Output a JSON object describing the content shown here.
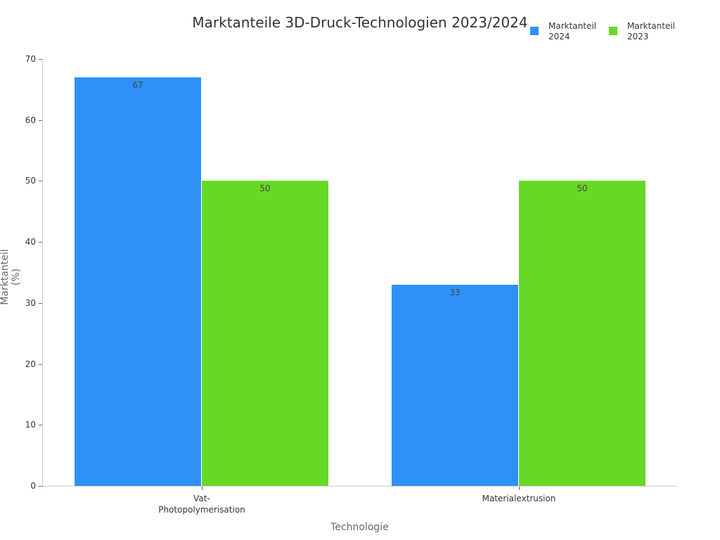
{
  "chart_data": {
    "type": "bar",
    "title": "Marktanteile 3D-Druck-Technologien 2023/2024",
    "xlabel": "Technologie",
    "ylabel": "Marktanteil (%)",
    "categories": [
      "Vat-\nPhotopolymerisation",
      "Materialextrusion"
    ],
    "series": [
      {
        "name": "Marktanteil\n2024",
        "color": "#2e91f7",
        "values": [
          67,
          33
        ]
      },
      {
        "name": "Marktanteil\n2023",
        "color": "#66d926",
        "values": [
          50,
          50
        ]
      }
    ],
    "ylim": [
      0,
      70
    ],
    "yticks": [
      "0",
      "10",
      "20",
      "30",
      "40",
      "50",
      "60",
      "70"
    ],
    "grid": false,
    "legend_position": "top-right"
  }
}
